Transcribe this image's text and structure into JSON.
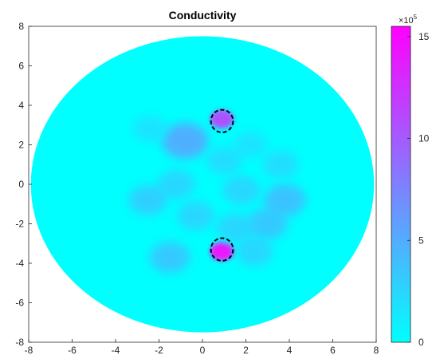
{
  "chart_data": {
    "type": "heatmap",
    "title": "Conductivity",
    "xlabel": "",
    "ylabel": "",
    "xlim": [
      -8,
      8
    ],
    "ylim": [
      -8,
      8
    ],
    "xticks": [
      -8,
      -6,
      -4,
      -2,
      0,
      2,
      4,
      6,
      8
    ],
    "yticks": [
      8,
      6,
      4,
      2,
      0,
      -2,
      -4,
      -6,
      -8
    ],
    "domain_shape": "ellipse",
    "domain": {
      "center": [
        0,
        0
      ],
      "semi_axis_x": 7.9,
      "semi_axis_y": 7.5
    },
    "colormap": [
      "#00ffff",
      "#ff00ff"
    ],
    "colorbar": {
      "range": [
        0,
        15.5
      ],
      "ticks": [
        0,
        5,
        10,
        15
      ],
      "exponent_label": "×10",
      "exponent_power": "5"
    },
    "background_value": 0,
    "blobs": [
      {
        "x": 0.9,
        "y": 3.3,
        "value": 11
      },
      {
        "x": 0.9,
        "y": -3.4,
        "value": 15
      },
      {
        "x": -0.8,
        "y": 2.2,
        "value": 6
      },
      {
        "x": -1.5,
        "y": -3.7,
        "value": 4
      },
      {
        "x": -1.2,
        "y": 0.0,
        "value": 3
      },
      {
        "x": 1.0,
        "y": 1.2,
        "value": 2.5
      },
      {
        "x": 1.8,
        "y": -0.3,
        "value": 3
      },
      {
        "x": 3.8,
        "y": -0.8,
        "value": 4.5
      },
      {
        "x": 3.0,
        "y": -2.0,
        "value": 4
      },
      {
        "x": 1.5,
        "y": -2.2,
        "value": 3
      },
      {
        "x": -0.3,
        "y": -1.6,
        "value": 3
      },
      {
        "x": -2.5,
        "y": -0.8,
        "value": 3.5
      },
      {
        "x": 2.2,
        "y": 2.0,
        "value": 2
      },
      {
        "x": -2.4,
        "y": 2.8,
        "value": 2
      },
      {
        "x": 2.4,
        "y": -3.4,
        "value": 3
      },
      {
        "x": 3.6,
        "y": 1.0,
        "value": 2.5
      }
    ],
    "markers": [
      {
        "x": 0.9,
        "y": 3.2,
        "radius": 0.5,
        "style": "dashed-circle"
      },
      {
        "x": 0.9,
        "y": -3.3,
        "radius": 0.5,
        "style": "dashed-circle"
      }
    ]
  }
}
